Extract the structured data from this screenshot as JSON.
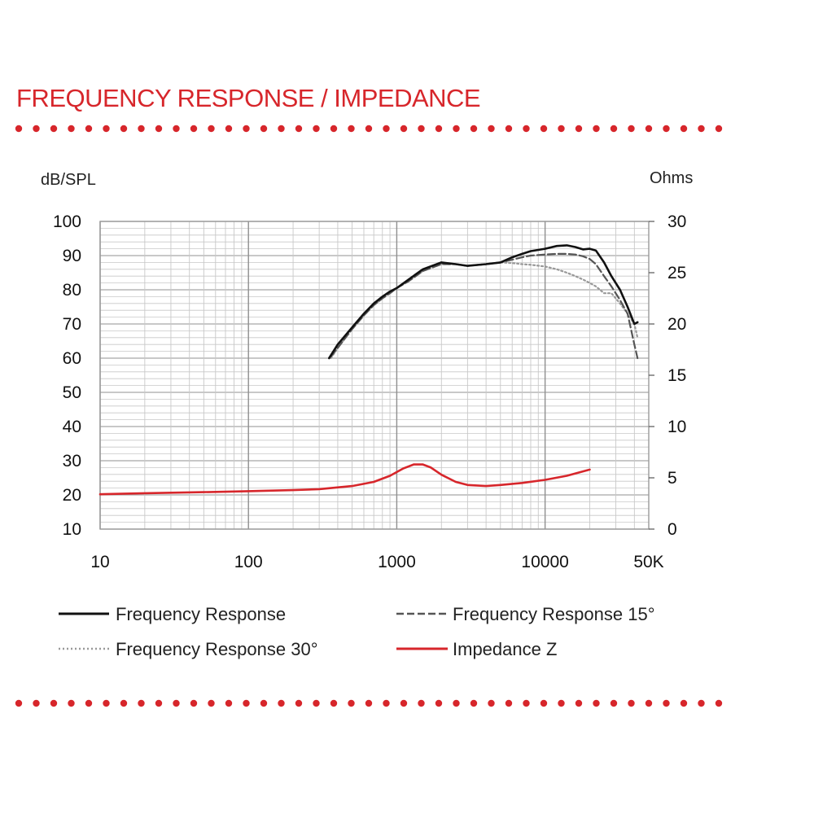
{
  "title": "FREQUENCY RESPONSE / IMPEDANCE",
  "colors": {
    "accent": "#d7262b",
    "grid": "#c8c8c8",
    "frame": "#9a9a9a"
  },
  "chart_data": {
    "type": "line",
    "title": "FREQUENCY RESPONSE / IMPEDANCE",
    "ylabel": "dB/SPL",
    "y2label": "Ohms",
    "xscale": "log",
    "xlim": [
      10,
      50000
    ],
    "ylim": [
      10,
      100
    ],
    "y2lim": [
      0,
      30
    ],
    "grid": true,
    "legend_position": "bottom",
    "x_tick_labels": [
      "10",
      "100",
      "1000",
      "10000",
      "50K"
    ],
    "y_tick_labels": [
      "100",
      "90",
      "80",
      "70",
      "60",
      "50",
      "40",
      "30",
      "20",
      "10"
    ],
    "y2_tick_labels": [
      "30",
      "25",
      "20",
      "15",
      "10",
      "5",
      "0"
    ],
    "series": [
      {
        "name": "Frequency Response",
        "axis": "left",
        "color": "#111111",
        "style": "solid",
        "x": [
          350,
          400,
          500,
          600,
          700,
          800,
          900,
          1000,
          1200,
          1500,
          2000,
          2500,
          3000,
          4000,
          5000,
          6000,
          7000,
          8000,
          10000,
          12000,
          14000,
          16000,
          18000,
          20000,
          22000,
          25000,
          28000,
          32000,
          36000,
          40000,
          42000
        ],
        "y": [
          60,
          64,
          69,
          73,
          76,
          78,
          79.5,
          80.5,
          83,
          86,
          88,
          87.5,
          87,
          87.5,
          88,
          89.5,
          90.5,
          91.3,
          92,
          92.8,
          93,
          92.5,
          91.8,
          92,
          91.5,
          88,
          84,
          80,
          75,
          70,
          70.5
        ]
      },
      {
        "name": "Frequency Response 15°",
        "axis": "left",
        "color": "#555555",
        "style": "dashed",
        "x": [
          360,
          400,
          500,
          600,
          700,
          800,
          900,
          1000,
          1200,
          1500,
          2000,
          2500,
          3000,
          4000,
          5000,
          6000,
          7000,
          8000,
          10000,
          12000,
          14000,
          16000,
          18000,
          20000,
          22000,
          25000,
          28000,
          32000,
          36000,
          40000,
          42000
        ],
        "y": [
          60.5,
          63,
          68.5,
          72.5,
          75.5,
          77.5,
          79,
          80.5,
          82.5,
          85.5,
          87.5,
          87.5,
          87,
          87.5,
          88,
          88.8,
          89.5,
          90,
          90.3,
          90.5,
          90.5,
          90.3,
          89.8,
          89,
          87.5,
          84,
          81,
          77,
          73,
          64,
          60
        ]
      },
      {
        "name": "Frequency Response 30°",
        "axis": "left",
        "color": "#999999",
        "style": "dotted",
        "x": [
          360,
          400,
          500,
          600,
          700,
          800,
          900,
          1000,
          1200,
          1500,
          2000,
          2500,
          3000,
          4000,
          5000,
          6000,
          7000,
          8000,
          10000,
          12000,
          14000,
          16000,
          18000,
          20000,
          22000,
          25000,
          28000,
          32000,
          36000,
          40000,
          42000
        ],
        "y": [
          60,
          63,
          68.5,
          72.5,
          75.5,
          77.5,
          79,
          80.5,
          82.5,
          85.5,
          87.5,
          87.5,
          87,
          87.5,
          88,
          87.8,
          87.5,
          87.3,
          86.8,
          86,
          85,
          84,
          83,
          82,
          81,
          79,
          79,
          76,
          73,
          70,
          66
        ]
      },
      {
        "name": "Impedance Z",
        "axis": "right",
        "color": "#d7262b",
        "style": "solid",
        "x": [
          10,
          20,
          50,
          100,
          200,
          300,
          500,
          700,
          900,
          1100,
          1300,
          1500,
          1700,
          2000,
          2500,
          3000,
          4000,
          5000,
          7000,
          10000,
          14000,
          20000
        ],
        "y": [
          3.4,
          3.5,
          3.6,
          3.7,
          3.8,
          3.9,
          4.2,
          4.6,
          5.2,
          5.9,
          6.3,
          6.3,
          6.0,
          5.3,
          4.6,
          4.3,
          4.2,
          4.3,
          4.5,
          4.8,
          5.2,
          5.8
        ]
      }
    ]
  }
}
